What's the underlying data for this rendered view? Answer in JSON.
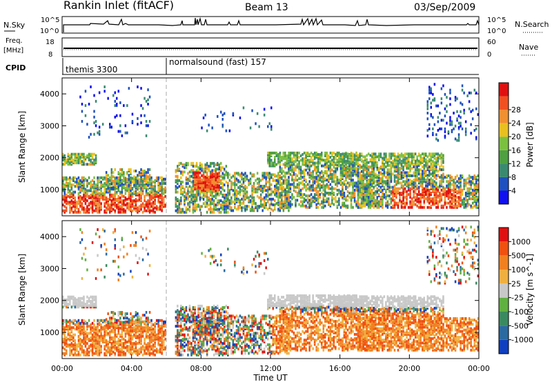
{
  "header": {
    "title": "Rankin Inlet (fitACF)",
    "beam": "Beam 13",
    "date": "03/Sep/2009"
  },
  "nsky_panel": {
    "left_label": "N.Sky",
    "left_ticks": [
      "10^5",
      "10^0"
    ],
    "right_ticks": [
      "10^5",
      "10^0"
    ],
    "right_label": "N.Search"
  },
  "freq_panel": {
    "left_label_line1": "Freq.",
    "left_label_line2": "[MHz]",
    "left_ticks": [
      "18",
      "8"
    ],
    "right_ticks": [
      "60",
      "0"
    ],
    "right_label": "Nave"
  },
  "cpid_panel": {
    "label": "CPID",
    "programs": [
      {
        "name": "themis 3300",
        "start_hour": 0
      },
      {
        "name": "normalsound (fast) 157",
        "start_hour": 6
      }
    ]
  },
  "x_axis": {
    "label": "Time UT",
    "ticks": [
      "00:00",
      "04:00",
      "08:00",
      "12:00",
      "16:00",
      "20:00",
      "00:00"
    ]
  },
  "chart_data": [
    {
      "type": "heatmap",
      "name": "power",
      "xlabel": "Time UT",
      "ylabel": "Slant Range [km]",
      "xlim": [
        0,
        24
      ],
      "ylim": [
        180,
        4500
      ],
      "y_ticks": [
        "1000",
        "2000",
        "3000",
        "4000"
      ],
      "colorbar": {
        "label": "Power [dB]",
        "ticks": [
          "4",
          "8",
          "12",
          "16",
          "20",
          "24",
          "28"
        ],
        "colors": [
          "#1010f0",
          "#1e50c0",
          "#3a8a70",
          "#4ea040",
          "#7cc040",
          "#e8c020",
          "#f09030",
          "#f05020",
          "#e01010"
        ]
      }
    },
    {
      "type": "heatmap",
      "name": "velocity",
      "xlabel": "Time UT",
      "ylabel": "Slant Range [km]",
      "xlim": [
        0,
        24
      ],
      "ylim": [
        180,
        4500
      ],
      "y_ticks": [
        "1000",
        "2000",
        "3000",
        "4000"
      ],
      "colorbar": {
        "label": "Velocity [m s^-1]",
        "ticks": [
          "1000",
          "500",
          "100",
          "25",
          "-25",
          "-100",
          "-500",
          "-1000"
        ],
        "colors": [
          "#1040c0",
          "#2a6aa0",
          "#3a8a60",
          "#60b040",
          "#c8c8c8",
          "#f0b040",
          "#f08020",
          "#f05010",
          "#e01010"
        ]
      }
    }
  ]
}
